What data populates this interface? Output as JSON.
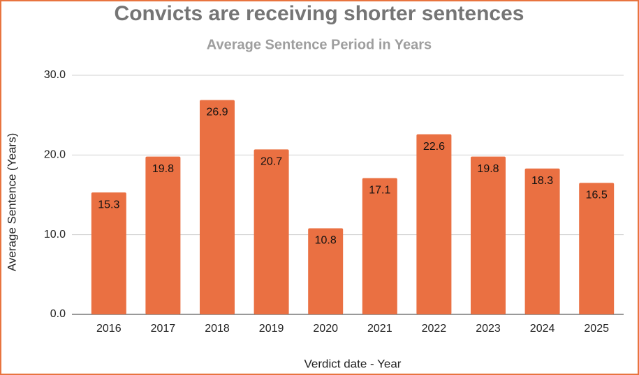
{
  "chart_data": {
    "type": "bar",
    "title": "Convicts are receiving shorter sentences",
    "subtitle": "Average Sentence Period in Years",
    "x_label": "Verdict date - Year",
    "y_label": "Average Sentence (Years)",
    "categories": [
      "2016",
      "2017",
      "2018",
      "2019",
      "2020",
      "2021",
      "2022",
      "2023",
      "2024",
      "2025"
    ],
    "values": [
      15.3,
      19.8,
      26.9,
      20.7,
      10.8,
      17.1,
      22.6,
      19.8,
      18.3,
      16.5
    ],
    "color": "#ea7042",
    "ylim": [
      0,
      30
    ],
    "yticks": [
      {
        "value": 0,
        "label": "0.0"
      },
      {
        "value": 10,
        "label": "10.0"
      },
      {
        "value": 20,
        "label": "20.0"
      },
      {
        "value": 30,
        "label": "30.0"
      }
    ],
    "grid": true
  }
}
